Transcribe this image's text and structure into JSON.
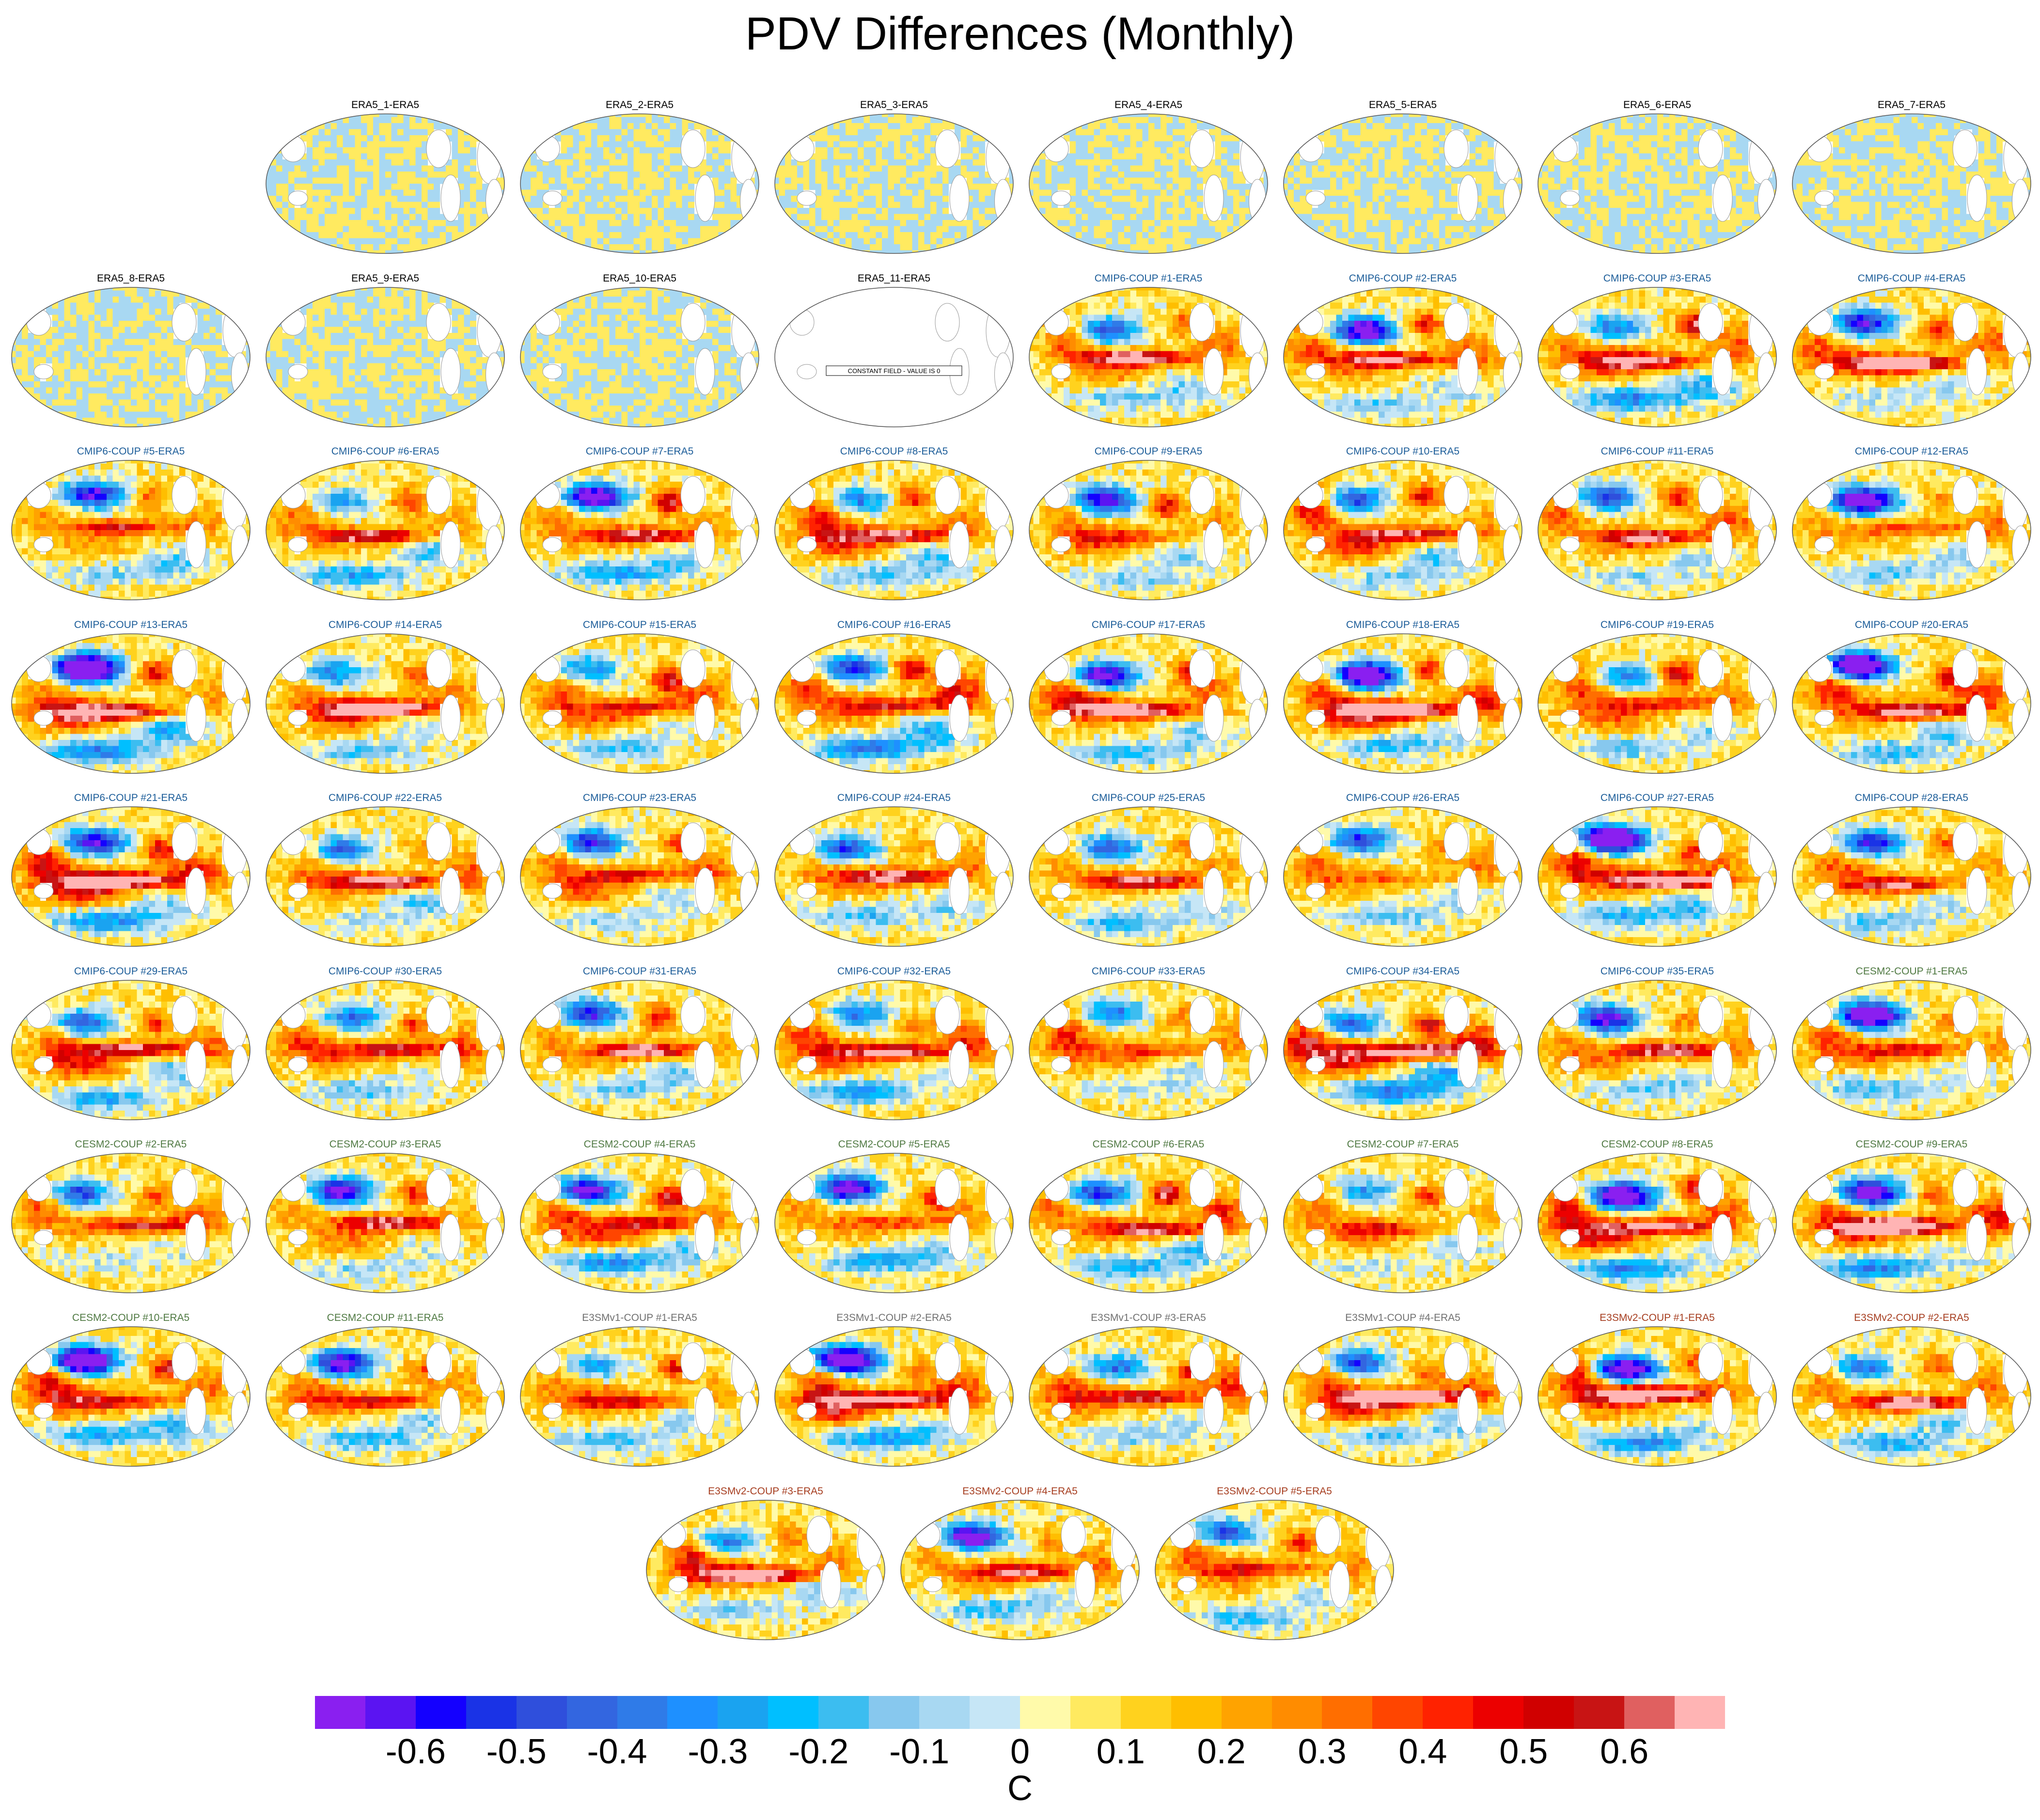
{
  "chart_data": {
    "type": "heatmap",
    "title": "PDV Differences (Monthly)",
    "units": "C",
    "colorbar": {
      "ticks": [
        "-0.6",
        "-0.5",
        "-0.4",
        "-0.3",
        "-0.2",
        "-0.1",
        "0",
        "0.1",
        "0.2",
        "0.3",
        "0.4",
        "0.5",
        "0.6"
      ],
      "colors": [
        "#8a1ff0",
        "#5b14f2",
        "#1400ff",
        "#1a33e6",
        "#2f4fdc",
        "#3366e0",
        "#2f7be8",
        "#1e90ff",
        "#1aa3f0",
        "#00bfff",
        "#3cbdf0",
        "#87c8ee",
        "#a8d8f2",
        "#c6e6f6",
        "#fffaaa",
        "#ffea60",
        "#ffd21e",
        "#ffbe00",
        "#ffa300",
        "#ff8c00",
        "#ff6e00",
        "#ff4500",
        "#ff2200",
        "#ec0000",
        "#d00000",
        "#c81414",
        "#e06060",
        "#ffb4b4"
      ]
    },
    "constant_field_note": "CONSTANT FIELD - VALUE IS 0",
    "panels": [
      {
        "label": "ERA5_1-ERA5",
        "group": "era5",
        "pattern": "noise"
      },
      {
        "label": "ERA5_2-ERA5",
        "group": "era5",
        "pattern": "noise"
      },
      {
        "label": "ERA5_3-ERA5",
        "group": "era5",
        "pattern": "noise"
      },
      {
        "label": "ERA5_4-ERA5",
        "group": "era5",
        "pattern": "noise"
      },
      {
        "label": "ERA5_5-ERA5",
        "group": "era5",
        "pattern": "noise"
      },
      {
        "label": "ERA5_6-ERA5",
        "group": "era5",
        "pattern": "noise"
      },
      {
        "label": "ERA5_7-ERA5",
        "group": "era5",
        "pattern": "noise"
      },
      {
        "label": "ERA5_8-ERA5",
        "group": "era5",
        "pattern": "noise"
      },
      {
        "label": "ERA5_9-ERA5",
        "group": "era5",
        "pattern": "noise"
      },
      {
        "label": "ERA5_10-ERA5",
        "group": "era5",
        "pattern": "noise"
      },
      {
        "label": "ERA5_11-ERA5",
        "group": "era5",
        "pattern": "constant"
      },
      {
        "label": "CMIP6-COUP #1-ERA5",
        "group": "cmip6",
        "pattern": "pdv"
      },
      {
        "label": "CMIP6-COUP #2-ERA5",
        "group": "cmip6",
        "pattern": "pdv"
      },
      {
        "label": "CMIP6-COUP #3-ERA5",
        "group": "cmip6",
        "pattern": "pdv"
      },
      {
        "label": "CMIP6-COUP #4-ERA5",
        "group": "cmip6",
        "pattern": "pdv"
      },
      {
        "label": "CMIP6-COUP #5-ERA5",
        "group": "cmip6",
        "pattern": "pdv"
      },
      {
        "label": "CMIP6-COUP #6-ERA5",
        "group": "cmip6",
        "pattern": "pdv"
      },
      {
        "label": "CMIP6-COUP #7-ERA5",
        "group": "cmip6",
        "pattern": "pdv"
      },
      {
        "label": "CMIP6-COUP #8-ERA5",
        "group": "cmip6",
        "pattern": "pdv"
      },
      {
        "label": "CMIP6-COUP #9-ERA5",
        "group": "cmip6",
        "pattern": "pdv"
      },
      {
        "label": "CMIP6-COUP #10-ERA5",
        "group": "cmip6",
        "pattern": "pdv"
      },
      {
        "label": "CMIP6-COUP #11-ERA5",
        "group": "cmip6",
        "pattern": "pdv"
      },
      {
        "label": "CMIP6-COUP #12-ERA5",
        "group": "cmip6",
        "pattern": "pdv"
      },
      {
        "label": "CMIP6-COUP #13-ERA5",
        "group": "cmip6",
        "pattern": "pdv"
      },
      {
        "label": "CMIP6-COUP #14-ERA5",
        "group": "cmip6",
        "pattern": "pdv"
      },
      {
        "label": "CMIP6-COUP #15-ERA5",
        "group": "cmip6",
        "pattern": "pdv"
      },
      {
        "label": "CMIP6-COUP #16-ERA5",
        "group": "cmip6",
        "pattern": "pdv"
      },
      {
        "label": "CMIP6-COUP #17-ERA5",
        "group": "cmip6",
        "pattern": "pdv"
      },
      {
        "label": "CMIP6-COUP #18-ERA5",
        "group": "cmip6",
        "pattern": "pdv"
      },
      {
        "label": "CMIP6-COUP #19-ERA5",
        "group": "cmip6",
        "pattern": "pdv"
      },
      {
        "label": "CMIP6-COUP #20-ERA5",
        "group": "cmip6",
        "pattern": "pdv"
      },
      {
        "label": "CMIP6-COUP #21-ERA5",
        "group": "cmip6",
        "pattern": "pdv"
      },
      {
        "label": "CMIP6-COUP #22-ERA5",
        "group": "cmip6",
        "pattern": "pdv"
      },
      {
        "label": "CMIP6-COUP #23-ERA5",
        "group": "cmip6",
        "pattern": "pdv"
      },
      {
        "label": "CMIP6-COUP #24-ERA5",
        "group": "cmip6",
        "pattern": "pdv"
      },
      {
        "label": "CMIP6-COUP #25-ERA5",
        "group": "cmip6",
        "pattern": "pdv"
      },
      {
        "label": "CMIP6-COUP #26-ERA5",
        "group": "cmip6",
        "pattern": "pdv"
      },
      {
        "label": "CMIP6-COUP #27-ERA5",
        "group": "cmip6",
        "pattern": "pdv"
      },
      {
        "label": "CMIP6-COUP #28-ERA5",
        "group": "cmip6",
        "pattern": "pdv"
      },
      {
        "label": "CMIP6-COUP #29-ERA5",
        "group": "cmip6",
        "pattern": "pdv"
      },
      {
        "label": "CMIP6-COUP #30-ERA5",
        "group": "cmip6",
        "pattern": "pdv"
      },
      {
        "label": "CMIP6-COUP #31-ERA5",
        "group": "cmip6",
        "pattern": "pdv"
      },
      {
        "label": "CMIP6-COUP #32-ERA5",
        "group": "cmip6",
        "pattern": "pdv"
      },
      {
        "label": "CMIP6-COUP #33-ERA5",
        "group": "cmip6",
        "pattern": "pdv"
      },
      {
        "label": "CMIP6-COUP #34-ERA5",
        "group": "cmip6",
        "pattern": "pdv"
      },
      {
        "label": "CMIP6-COUP #35-ERA5",
        "group": "cmip6",
        "pattern": "pdv"
      },
      {
        "label": "CESM2-COUP #1-ERA5",
        "group": "cesm2",
        "pattern": "pdv"
      },
      {
        "label": "CESM2-COUP #2-ERA5",
        "group": "cesm2",
        "pattern": "pdv"
      },
      {
        "label": "CESM2-COUP #3-ERA5",
        "group": "cesm2",
        "pattern": "pdv"
      },
      {
        "label": "CESM2-COUP #4-ERA5",
        "group": "cesm2",
        "pattern": "pdv"
      },
      {
        "label": "CESM2-COUP #5-ERA5",
        "group": "cesm2",
        "pattern": "pdv"
      },
      {
        "label": "CESM2-COUP #6-ERA5",
        "group": "cesm2",
        "pattern": "pdv"
      },
      {
        "label": "CESM2-COUP #7-ERA5",
        "group": "cesm2",
        "pattern": "pdv"
      },
      {
        "label": "CESM2-COUP #8-ERA5",
        "group": "cesm2",
        "pattern": "pdv"
      },
      {
        "label": "CESM2-COUP #9-ERA5",
        "group": "cesm2",
        "pattern": "pdv"
      },
      {
        "label": "CESM2-COUP #10-ERA5",
        "group": "cesm2",
        "pattern": "pdv"
      },
      {
        "label": "CESM2-COUP #11-ERA5",
        "group": "cesm2",
        "pattern": "pdv"
      },
      {
        "label": "E3SMv1-COUP #1-ERA5",
        "group": "e3smv1",
        "pattern": "pdv"
      },
      {
        "label": "E3SMv1-COUP #2-ERA5",
        "group": "e3smv1",
        "pattern": "pdv"
      },
      {
        "label": "E3SMv1-COUP #3-ERA5",
        "group": "e3smv1",
        "pattern": "pdv"
      },
      {
        "label": "E3SMv1-COUP #4-ERA5",
        "group": "e3smv1",
        "pattern": "pdv"
      },
      {
        "label": "E3SMv2-COUP #1-ERA5",
        "group": "e3smv2",
        "pattern": "pdv"
      },
      {
        "label": "E3SMv2-COUP #2-ERA5",
        "group": "e3smv2",
        "pattern": "pdv"
      },
      {
        "label": "E3SMv2-COUP #3-ERA5",
        "group": "e3smv2",
        "pattern": "pdv"
      },
      {
        "label": "E3SMv2-COUP #4-ERA5",
        "group": "e3smv2",
        "pattern": "pdv"
      },
      {
        "label": "E3SMv2-COUP #5-ERA5",
        "group": "e3smv2",
        "pattern": "pdv"
      }
    ]
  }
}
